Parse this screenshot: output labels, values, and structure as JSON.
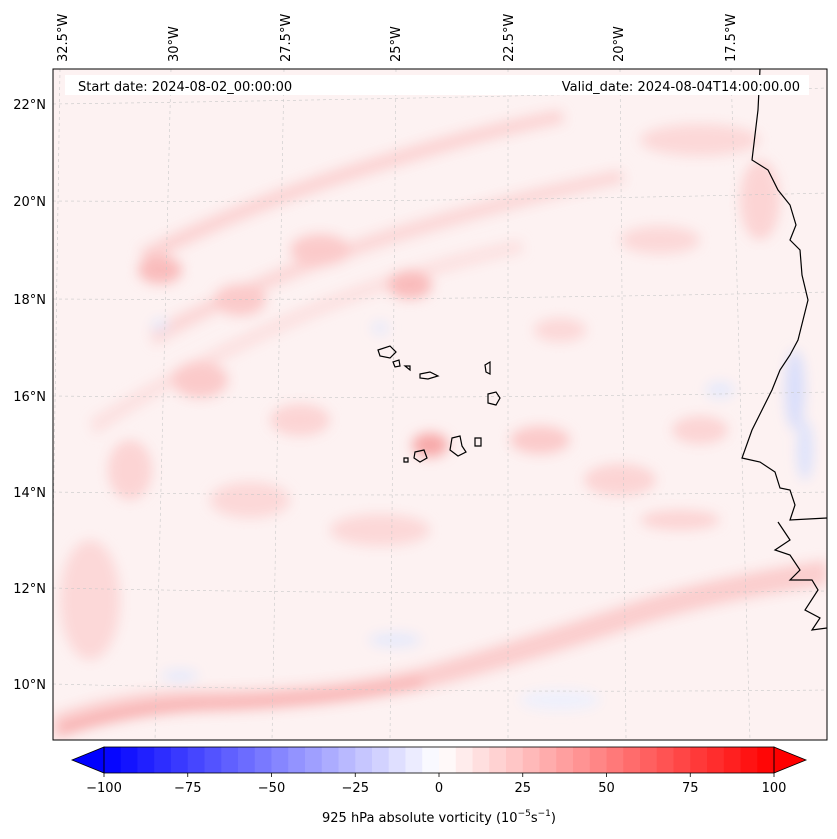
{
  "figure": {
    "start_date": "Start date: 2024-08-02_00:00:00",
    "valid_date": "Valid_date: 2024-08-04T14:00:00.00"
  },
  "map": {
    "longitude_labels": [
      "32.5°W",
      "30°W",
      "27.5°W",
      "25°W",
      "22.5°W",
      "20°W",
      "17.5°W"
    ],
    "latitude_labels": [
      "22°N",
      "20°N",
      "18°N",
      "16°N",
      "14°N",
      "12°N",
      "10°N"
    ],
    "field_colors": {
      "weak_positive": "#fde6e6",
      "moderate_positive": "#fbcaca",
      "weak_negative": "#e8ecfb",
      "coastline": "#000000",
      "gridline": "#c8c8c8"
    }
  },
  "colorbar": {
    "label_prefix": "925 hPa absolute vorticity (10",
    "label_exp1": "−5",
    "label_mid": "s",
    "label_exp2": "−1",
    "label_suffix": ")",
    "tick_labels": [
      "−100",
      "−75",
      "−50",
      "−25",
      "0",
      "25",
      "50",
      "75",
      "100"
    ],
    "min_value": -100,
    "max_value": 100,
    "levels": 40,
    "extend": "both",
    "colormap": "bwr",
    "color_low": "#0000ff",
    "color_mid": "#ffffff",
    "color_high": "#ff0000"
  }
}
